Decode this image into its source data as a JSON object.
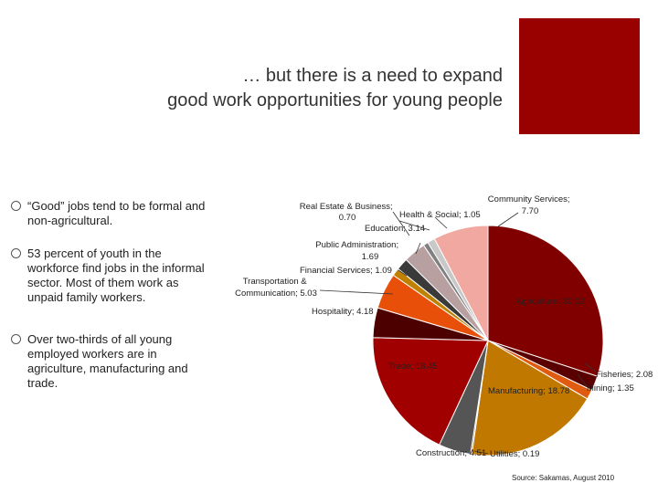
{
  "title_line1": "… but there is a need to expand",
  "title_line2": "good work opportunities for young people",
  "bullets": [
    "“Good” jobs tend to be formal and non-agricultural.",
    "53 percent of youth in the workforce find jobs in the informal sector. Most of them work as unpaid family workers.",
    "Over two-thirds of all young employed workers are in agriculture, manufacturing and trade."
  ],
  "source": "Source: Sakamas, August 2010",
  "accent_color": "#990000",
  "chart_data": {
    "type": "pie",
    "slices": [
      {
        "name": "Agriculture",
        "value": 30.02,
        "label": "Agriculture; 30.02",
        "color": "#800000"
      },
      {
        "name": "Fisheries",
        "value": 2.08,
        "label": "Fisheries; 2.08",
        "color": "#5a0000"
      },
      {
        "name": "Mining",
        "value": 1.35,
        "label": "Mining; 1.35",
        "color": "#e05a10"
      },
      {
        "name": "Manufacturing",
        "value": 18.78,
        "label": "Manufacturing; 18.78",
        "color": "#c07800"
      },
      {
        "name": "Utilities",
        "value": 0.19,
        "label": "Utilities; 0.19",
        "color": "#5a1a00"
      },
      {
        "name": "Construction",
        "value": 4.51,
        "label": "Construction; 4.51",
        "color": "#555555"
      },
      {
        "name": "Trade",
        "value": 18.45,
        "label": "Trade; 18.45",
        "color": "#a00000"
      },
      {
        "name": "Hospitality",
        "value": 4.18,
        "label": "Hospitality; 4.18",
        "color": "#4d0000"
      },
      {
        "name": "Transportation & Communication",
        "value": 5.03,
        "label": "Transportation & Communication; 5.03",
        "color": "#e8500a"
      },
      {
        "name": "Financial Services",
        "value": 1.09,
        "label": "Financial Services; 1.09",
        "color": "#c08000"
      },
      {
        "name": "Public Administration",
        "value": 1.69,
        "label": "Public Administration; 1.69",
        "color": "#3a3a3a"
      },
      {
        "name": "Education",
        "value": 3.14,
        "label": "Education; 3.14",
        "color": "#b8a0a0"
      },
      {
        "name": "Real Estate & Business",
        "value": 0.7,
        "label": "Real Estate & Business; 0.70",
        "color": "#808080"
      },
      {
        "name": "Health & Social",
        "value": 1.05,
        "label": "Health & Social; 1.05",
        "color": "#c8c8c8"
      },
      {
        "name": "Community Services",
        "value": 7.7,
        "label": "Community Services; 7.70",
        "color": "#f0a8a0"
      }
    ]
  }
}
